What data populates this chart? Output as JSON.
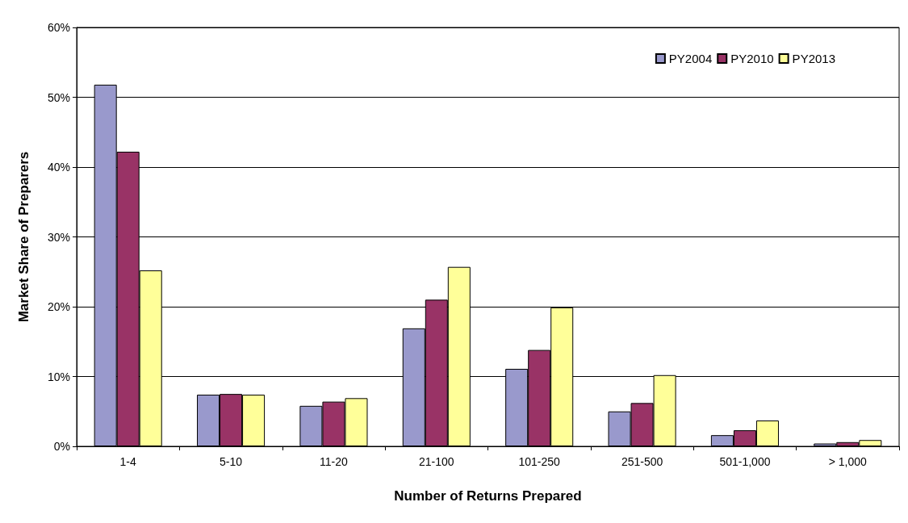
{
  "chart_data": {
    "type": "bar",
    "xlabel": "Number of Returns Prepared",
    "ylabel": "Market Share of Preparers",
    "categories": [
      "1-4",
      "5-10",
      "11-20",
      "21-100",
      "101-250",
      "251-500",
      "501-1,000",
      "> 1,000"
    ],
    "series": [
      {
        "name": "PY2004",
        "color": "#9999cc",
        "values": [
          51.8,
          7.4,
          5.8,
          16.9,
          11.1,
          5.0,
          1.6,
          0.4
        ]
      },
      {
        "name": "PY2010",
        "color": "#993366",
        "values": [
          42.2,
          7.5,
          6.4,
          21.0,
          13.8,
          6.2,
          2.3,
          0.6
        ]
      },
      {
        "name": "PY2013",
        "color": "#ffff99",
        "values": [
          25.2,
          7.4,
          6.9,
          25.7,
          19.9,
          10.2,
          3.7,
          0.9
        ]
      }
    ],
    "ylim": [
      0,
      60
    ],
    "yticks": [
      {
        "value": 0,
        "label": "0%"
      },
      {
        "value": 10,
        "label": "10%"
      },
      {
        "value": 20,
        "label": "20%"
      },
      {
        "value": 30,
        "label": "30%"
      },
      {
        "value": 40,
        "label": "40%"
      },
      {
        "value": 50,
        "label": "50%"
      },
      {
        "value": 60,
        "label": "60%"
      }
    ],
    "grid": "y",
    "legend": "top right"
  }
}
